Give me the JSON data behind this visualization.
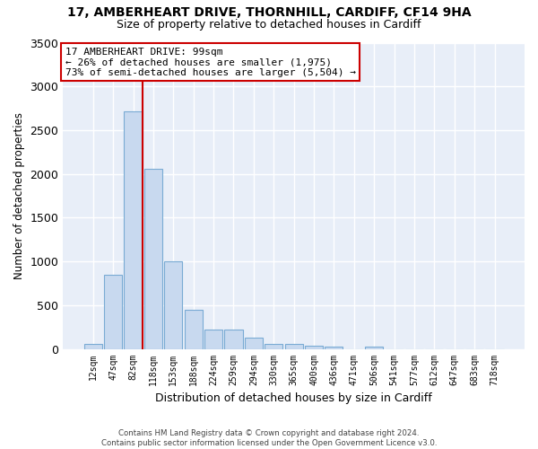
{
  "title_line1": "17, AMBERHEART DRIVE, THORNHILL, CARDIFF, CF14 9HA",
  "title_line2": "Size of property relative to detached houses in Cardiff",
  "xlabel": "Distribution of detached houses by size in Cardiff",
  "ylabel": "Number of detached properties",
  "footer_line1": "Contains HM Land Registry data © Crown copyright and database right 2024.",
  "footer_line2": "Contains public sector information licensed under the Open Government Licence v3.0.",
  "bar_labels": [
    "12sqm",
    "47sqm",
    "82sqm",
    "118sqm",
    "153sqm",
    "188sqm",
    "224sqm",
    "259sqm",
    "294sqm",
    "330sqm",
    "365sqm",
    "400sqm",
    "436sqm",
    "471sqm",
    "506sqm",
    "541sqm",
    "577sqm",
    "612sqm",
    "647sqm",
    "683sqm",
    "718sqm"
  ],
  "bar_values": [
    60,
    850,
    2720,
    2060,
    1000,
    450,
    220,
    220,
    130,
    60,
    55,
    35,
    30,
    0,
    25,
    0,
    0,
    0,
    0,
    0,
    0
  ],
  "bar_color": "#c8d9ef",
  "bar_edge_color": "#7aabd4",
  "bg_color": "#e8eef8",
  "grid_color": "#ffffff",
  "vline_x_idx": 2,
  "vline_color": "#cc0000",
  "annotation_line1": "17 AMBERHEART DRIVE: 99sqm",
  "annotation_line2": "← 26% of detached houses are smaller (1,975)",
  "annotation_line3": "73% of semi-detached houses are larger (5,504) →",
  "annotation_box_color": "#cc0000",
  "ylim": [
    0,
    3500
  ],
  "yticks": [
    0,
    500,
    1000,
    1500,
    2000,
    2500,
    3000,
    3500
  ],
  "title1_fontsize": 10,
  "title2_fontsize": 9
}
